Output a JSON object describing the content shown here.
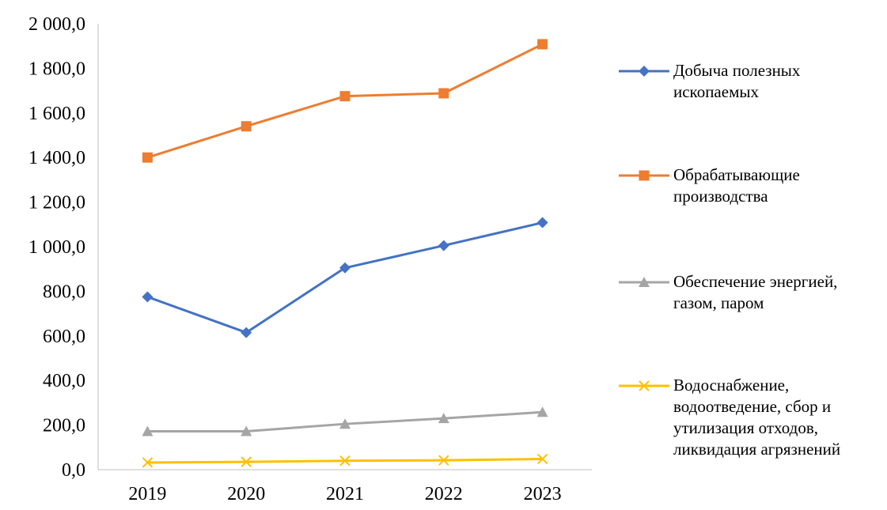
{
  "chart_data": {
    "type": "line",
    "title": "",
    "xlabel": "",
    "ylabel": "",
    "categories": [
      "2019",
      "2020",
      "2021",
      "2022",
      "2023"
    ],
    "ylim": [
      0,
      2000
    ],
    "yticks": [
      "0,0",
      "200,0",
      "400,0",
      "600,0",
      "800,0",
      "1 000,0",
      "1 200,0",
      "1 400,0",
      "1 600,0",
      "1 800,0",
      "2 000,0"
    ],
    "grid": false,
    "legend_position": "right",
    "series": [
      {
        "name": "Добыча полезных ископаемых",
        "label_lines": "Добыча полезных\nископаемых",
        "values": [
          775,
          615,
          905,
          1005,
          1108
        ],
        "color": "#4472C4",
        "marker": "diamond"
      },
      {
        "name": "Обрабатывающие производства",
        "label_lines": "Обрабатывающие\nпроизводства",
        "values": [
          1400,
          1540,
          1675,
          1688,
          1908
        ],
        "color": "#ED7D31",
        "marker": "square"
      },
      {
        "name": "Обеспечение энергией, газом, паром",
        "label_lines": "Обеспечение энергией,\nгазом, паром",
        "values": [
          172,
          172,
          205,
          230,
          258
        ],
        "color": "#A5A5A5",
        "marker": "triangle"
      },
      {
        "name": "Водоснабжение, водоотведение, сбор и утилизация отходов, ликвидация агрязнений",
        "label_lines": "Водоснабжение,\nводоотведение, сбор и\nутилизация отходов,\nликвидация агрязнений",
        "values": [
          32,
          35,
          40,
          42,
          48
        ],
        "color": "#FFC000",
        "marker": "x"
      }
    ]
  }
}
